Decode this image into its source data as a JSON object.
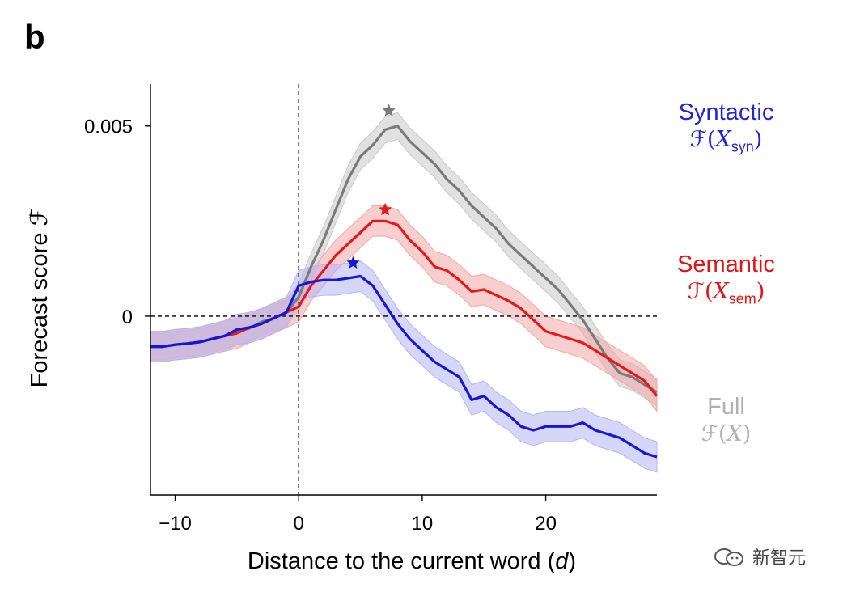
{
  "panel_label": "b",
  "watermark": {
    "text": "新智元",
    "icon": "wechat-bubble-icon"
  },
  "legend": [
    {
      "key": "syn",
      "name": "Syntactic",
      "formula_prefix": "ℱ(",
      "var": "X",
      "sub": "syn",
      "formula_suffix": ")",
      "color": "#2323d8"
    },
    {
      "key": "sem",
      "name": "Semantic",
      "formula_prefix": "ℱ(",
      "var": "X",
      "sub": "sem",
      "formula_suffix": ")",
      "color": "#e01515"
    },
    {
      "key": "full",
      "name": "Full",
      "formula_prefix": "ℱ(",
      "var": "X",
      "sub": "",
      "formula_suffix": ")",
      "color": "#b0b0b0"
    }
  ],
  "chart_data": {
    "type": "line",
    "title": "",
    "xlabel": "Distance to the current word (d)",
    "ylabel": "Forecast score ℱ",
    "xlim": [
      -12,
      29
    ],
    "ylim": [
      -0.0047,
      0.0061
    ],
    "xticks": [
      -10,
      0,
      10,
      20
    ],
    "xtick_labels": [
      "−10",
      "0",
      "10",
      "20"
    ],
    "yticks": [
      0,
      0.005
    ],
    "ytick_labels": [
      "0",
      "0.005"
    ],
    "reference_lines": {
      "vertical_x": 0,
      "horizontal_y": 0
    },
    "series": [
      {
        "name": "Full",
        "key": "full",
        "color": "#7a7a7a",
        "band_color": "#c8c8c8",
        "x": [
          -12,
          -11,
          -10,
          -9,
          -8,
          -7,
          -6,
          -5,
          -4,
          -3,
          -2,
          -1,
          0,
          1,
          2,
          3,
          4,
          5,
          6,
          7,
          8,
          9,
          10,
          11,
          12,
          13,
          14,
          15,
          16,
          17,
          18,
          19,
          20,
          21,
          22,
          23,
          24,
          25,
          26,
          27,
          28,
          29
        ],
        "y": [
          -0.0008,
          -0.0008,
          -0.00075,
          -0.00072,
          -0.00068,
          -0.0006,
          -0.00052,
          -0.0004,
          -0.00032,
          -0.00015,
          -5e-05,
          0.0001,
          0.0005,
          0.0013,
          0.002,
          0.0028,
          0.0036,
          0.0042,
          0.0045,
          0.0049,
          0.005,
          0.0046,
          0.0043,
          0.004,
          0.0036,
          0.0033,
          0.0029,
          0.0026,
          0.0023,
          0.0019,
          0.0016,
          0.0013,
          0.001,
          0.0007,
          0.0003,
          -0.0001,
          -0.0006,
          -0.0011,
          -0.0015,
          -0.0016,
          -0.0018,
          -0.002
        ],
        "band": 0.00035,
        "peak": {
          "x": 7.3,
          "y": 0.0054
        }
      },
      {
        "name": "Semantic",
        "key": "sem",
        "color": "#e81818",
        "band_color": "#f2a6a6",
        "x": [
          -12,
          -11,
          -10,
          -9,
          -8,
          -7,
          -6,
          -5,
          -4,
          -3,
          -2,
          -1,
          0,
          1,
          2,
          3,
          4,
          5,
          6,
          7,
          8,
          9,
          10,
          11,
          12,
          13,
          14,
          15,
          16,
          17,
          18,
          19,
          20,
          21,
          22,
          23,
          24,
          25,
          26,
          27,
          28,
          29
        ],
        "y": [
          -0.0008,
          -0.0008,
          -0.00075,
          -0.00072,
          -0.00068,
          -0.0006,
          -0.00052,
          -0.00045,
          -0.0003,
          -0.0002,
          -5e-05,
          0.0001,
          0.00025,
          0.0008,
          0.0012,
          0.0016,
          0.0019,
          0.0022,
          0.0025,
          0.0025,
          0.0024,
          0.002,
          0.0017,
          0.0013,
          0.0012,
          0.00095,
          0.00065,
          0.0007,
          0.00055,
          0.0004,
          0.0002,
          -0.0001,
          -0.0004,
          -0.0005,
          -0.0006,
          -0.0007,
          -0.0009,
          -0.0011,
          -0.0013,
          -0.0015,
          -0.0017,
          -0.0021
        ],
        "band": 0.0004,
        "peak": {
          "x": 7.0,
          "y": 0.0028
        }
      },
      {
        "name": "Syntactic",
        "key": "syn",
        "color": "#1616d6",
        "band_color": "#b4b4f4",
        "x": [
          -12,
          -11,
          -10,
          -9,
          -8,
          -7,
          -6,
          -5,
          -4,
          -3,
          -2,
          -1,
          0,
          1,
          2,
          3,
          4,
          5,
          6,
          7,
          8,
          9,
          10,
          11,
          12,
          13,
          14,
          15,
          16,
          17,
          18,
          19,
          20,
          21,
          22,
          23,
          24,
          25,
          26,
          27,
          28,
          29
        ],
        "y": [
          -0.0008,
          -0.0008,
          -0.00075,
          -0.00072,
          -0.00068,
          -0.0006,
          -0.00052,
          -0.00035,
          -0.0003,
          -0.0002,
          -5e-05,
          0.0001,
          0.0008,
          0.0009,
          0.00095,
          0.00095,
          0.001,
          0.00105,
          0.0008,
          0.0003,
          -0.0002,
          -0.0006,
          -0.0009,
          -0.0012,
          -0.0014,
          -0.0016,
          -0.0022,
          -0.0021,
          -0.0024,
          -0.0026,
          -0.0029,
          -0.003,
          -0.0029,
          -0.0029,
          -0.0029,
          -0.0028,
          -0.003,
          -0.0031,
          -0.0032,
          -0.0034,
          -0.0036,
          -0.0037
        ],
        "band": 0.0004,
        "peak": {
          "x": 4.4,
          "y": 0.0014
        }
      }
    ]
  }
}
